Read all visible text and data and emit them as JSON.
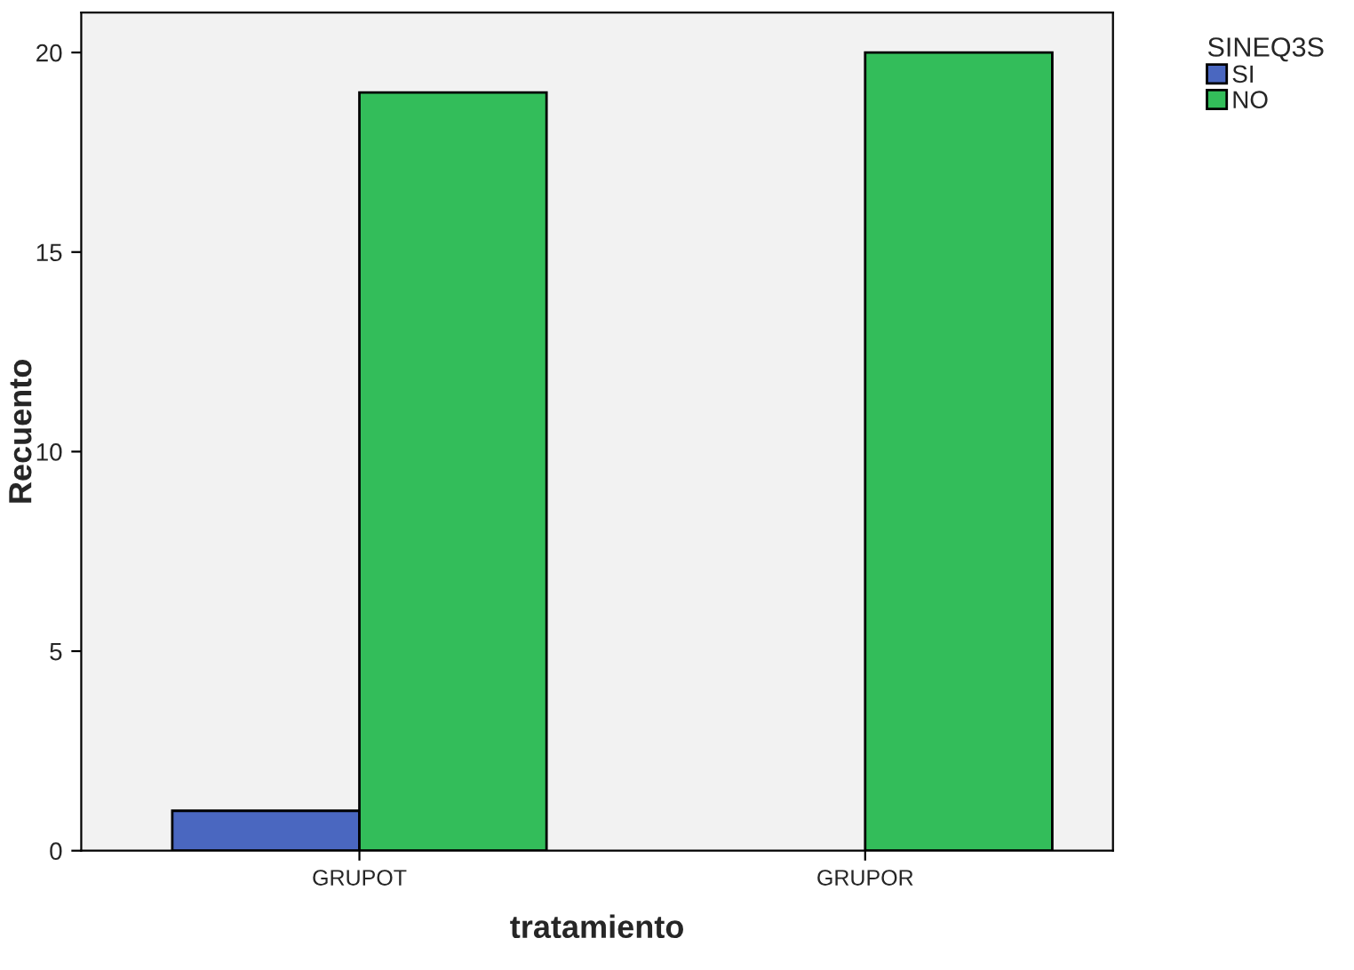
{
  "chart_data": {
    "type": "bar",
    "xlabel": "tratamiento",
    "ylabel": "Recuento",
    "legend_title": "SINEQ3S",
    "categories": [
      "GRUPOT",
      "GRUPOR"
    ],
    "series": [
      {
        "name": "SI",
        "color": "#4a67c0",
        "values": [
          1,
          null
        ]
      },
      {
        "name": "NO",
        "color": "#33bd5a",
        "values": [
          19,
          20
        ]
      }
    ],
    "ylim": [
      0,
      21
    ],
    "yticks": [
      0,
      5,
      10,
      15,
      20
    ],
    "grid": false,
    "legend": "top right"
  }
}
